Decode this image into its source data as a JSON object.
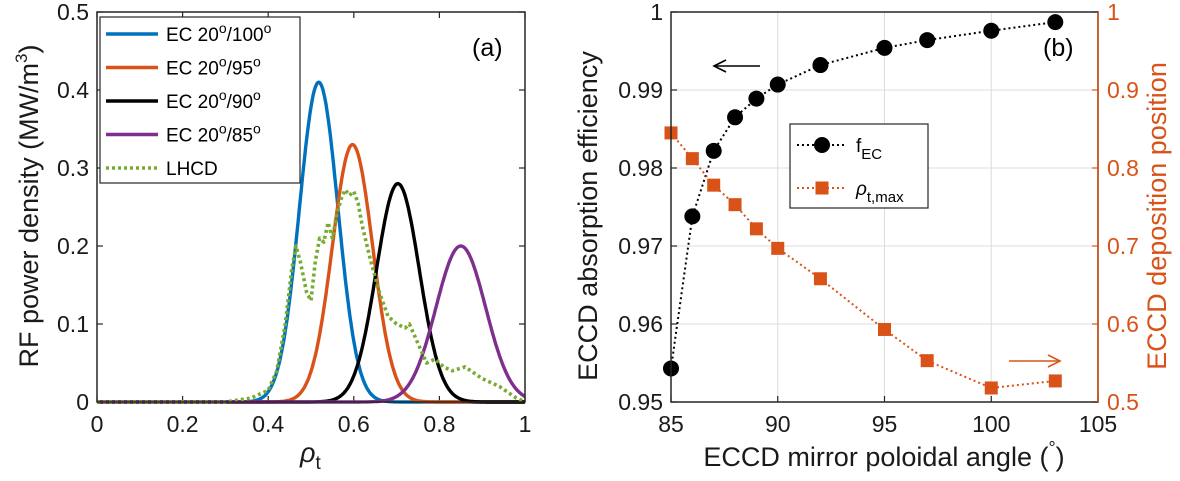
{
  "colors": {
    "ec100": "#0072bd",
    "ec95": "#d95319",
    "ec90": "#000000",
    "ec85": "#7e2f8e",
    "lhcd": "#77ac30",
    "fEC": "#000000",
    "rho": "#d95319",
    "axis": "#262626",
    "grid": "#dcdcdc"
  },
  "chart_data": [
    {
      "type": "line",
      "panel_label": "(a)",
      "xlabel_main": "ρ",
      "xlabel_sub": "t",
      "ylabel": "RF power density (MW/m",
      "ylabel_sup": "3",
      "ylabel_close": ")",
      "xlim": [
        0,
        1
      ],
      "ylim": [
        0,
        0.5
      ],
      "xticks": [
        0,
        0.2,
        0.4,
        0.6,
        0.8,
        1
      ],
      "xtick_labels": [
        "0",
        "0.2",
        "0.4",
        "0.6",
        "0.8",
        "1"
      ],
      "yticks": [
        0,
        0.1,
        0.2,
        0.3,
        0.4,
        0.5
      ],
      "ytick_labels": [
        "0",
        "0.1",
        "0.2",
        "0.3",
        "0.4",
        "0.5"
      ],
      "grid": false,
      "legend": {
        "placement": "top-left",
        "items": [
          {
            "key": "ec100",
            "parts": [
              "EC 20",
              "o",
              "/100",
              "o"
            ]
          },
          {
            "key": "ec95",
            "parts": [
              "EC 20",
              "o",
              "/95",
              "o"
            ]
          },
          {
            "key": "ec90",
            "parts": [
              "EC 20",
              "o",
              "/90",
              "o"
            ]
          },
          {
            "key": "ec85",
            "parts": [
              "EC 20",
              "o",
              "/85",
              "o"
            ]
          },
          {
            "key": "lhcd",
            "parts": [
              "LHCD",
              "",
              "",
              ""
            ]
          }
        ]
      },
      "series": [
        {
          "key": "ec100",
          "style": "solid",
          "peak": {
            "x": 0.518,
            "y": 0.41,
            "width": 0.045
          }
        },
        {
          "key": "ec95",
          "style": "solid",
          "peak": {
            "x": 0.597,
            "y": 0.33,
            "width": 0.047
          }
        },
        {
          "key": "ec90",
          "style": "solid",
          "peak": {
            "x": 0.703,
            "y": 0.28,
            "width": 0.05
          }
        },
        {
          "key": "ec85",
          "style": "solid",
          "peak": {
            "x": 0.85,
            "y": 0.2,
            "width": 0.058
          }
        },
        {
          "key": "lhcd",
          "style": "dotted",
          "x": [
            0.3,
            0.36,
            0.4,
            0.42,
            0.44,
            0.455,
            0.465,
            0.475,
            0.49,
            0.5,
            0.51,
            0.52,
            0.53,
            0.54,
            0.55,
            0.56,
            0.57,
            0.58,
            0.59,
            0.6,
            0.61,
            0.62,
            0.64,
            0.66,
            0.68,
            0.7,
            0.72,
            0.73,
            0.75,
            0.77,
            0.79,
            0.81,
            0.83,
            0.86,
            0.9,
            0.94,
            0.98,
            1.0
          ],
          "y": [
            0.0,
            0.005,
            0.015,
            0.04,
            0.1,
            0.17,
            0.2,
            0.18,
            0.14,
            0.13,
            0.18,
            0.21,
            0.205,
            0.23,
            0.21,
            0.24,
            0.26,
            0.272,
            0.265,
            0.27,
            0.255,
            0.225,
            0.18,
            0.14,
            0.11,
            0.1,
            0.095,
            0.1,
            0.075,
            0.05,
            0.055,
            0.045,
            0.04,
            0.045,
            0.03,
            0.02,
            0.005,
            0.0
          ]
        }
      ]
    },
    {
      "type": "line",
      "panel_label": "(b)",
      "xlabel": "ECCD mirror poloidal angle (",
      "xlabel_deg": "°",
      "xlabel_close": ")",
      "ylabel": "ECCD absorption efficiency",
      "ylabel_right": "ECCD deposition position",
      "xlim": [
        85,
        105
      ],
      "ylim": [
        0.95,
        1.0
      ],
      "ylim_right": [
        0.5,
        1.0
      ],
      "xticks": [
        85,
        90,
        95,
        100,
        105
      ],
      "xtick_labels": [
        "85",
        "90",
        "95",
        "100",
        "105"
      ],
      "yticks": [
        0.95,
        0.96,
        0.97,
        0.98,
        0.99,
        1.0
      ],
      "ytick_labels": [
        "0.95",
        "0.96",
        "0.97",
        "0.98",
        "0.99",
        "1"
      ],
      "yticks_right": [
        0.5,
        0.6,
        0.7,
        0.8,
        0.9,
        1.0
      ],
      "ytick_labels_right": [
        "0.5",
        "0.6",
        "0.7",
        "0.8",
        "0.9",
        "1"
      ],
      "grid": true,
      "legend": {
        "placement": "center",
        "items": [
          {
            "key": "fEC",
            "main": "f",
            "sub": "EC"
          },
          {
            "key": "rho",
            "main": "ρ",
            "sub": "t,max"
          }
        ]
      },
      "series": [
        {
          "key": "fEC",
          "axis": "left",
          "marker": "circle",
          "x": [
            85,
            86,
            87,
            88,
            89,
            90,
            92,
            95,
            97,
            100,
            103
          ],
          "y": [
            0.9543,
            0.9738,
            0.9822,
            0.9865,
            0.9889,
            0.9907,
            0.9932,
            0.9954,
            0.9964,
            0.9976,
            0.9987
          ]
        },
        {
          "key": "rho",
          "axis": "right",
          "marker": "square",
          "x": [
            85,
            86,
            87,
            88,
            89,
            90,
            92,
            95,
            97,
            100,
            103
          ],
          "y": [
            0.845,
            0.812,
            0.778,
            0.753,
            0.722,
            0.697,
            0.658,
            0.593,
            0.553,
            0.518,
            0.527
          ]
        }
      ]
    }
  ]
}
